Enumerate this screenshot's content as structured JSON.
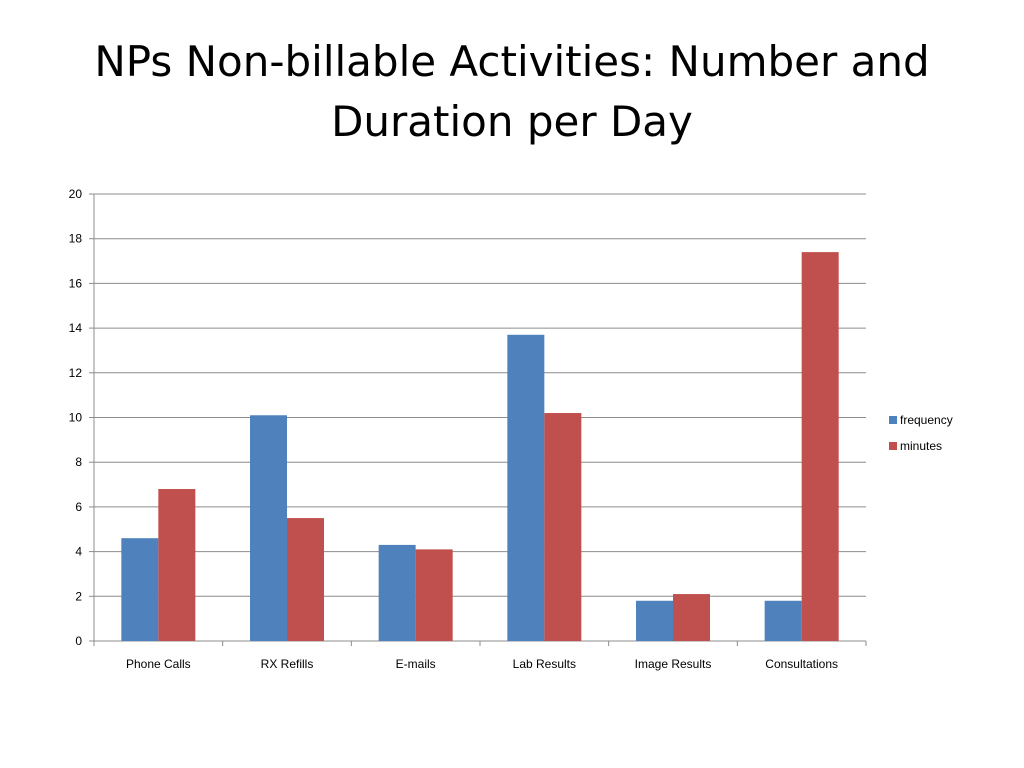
{
  "slide": {
    "title": "NPs Non-billable Activities: Number and Duration per Day"
  },
  "chart_data": {
    "type": "bar",
    "title": "",
    "xlabel": "",
    "ylabel": "",
    "categories": [
      "Phone Calls",
      "RX Refills",
      "E-mails",
      "Lab Results",
      "Image Results",
      "Consultations"
    ],
    "series": [
      {
        "name": "frequency",
        "color": "#4F81BD",
        "values": [
          4.6,
          10.1,
          4.3,
          13.7,
          1.8,
          1.8
        ]
      },
      {
        "name": "minutes",
        "color": "#C0504D",
        "values": [
          6.8,
          5.5,
          4.1,
          10.2,
          2.1,
          17.4
        ]
      }
    ],
    "ylim": [
      0,
      20
    ],
    "yticks": [
      0,
      2,
      4,
      6,
      8,
      10,
      12,
      14,
      16,
      18,
      20
    ],
    "grid": true,
    "legend_position": "right"
  }
}
